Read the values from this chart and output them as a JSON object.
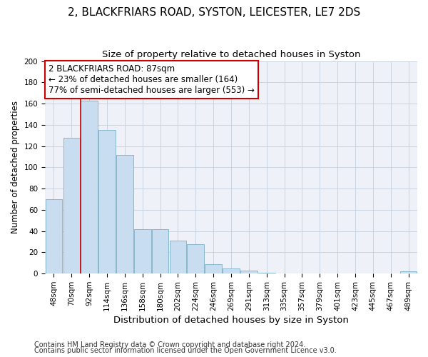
{
  "title1": "2, BLACKFRIARS ROAD, SYSTON, LEICESTER, LE7 2DS",
  "title2": "Size of property relative to detached houses in Syston",
  "xlabel": "Distribution of detached houses by size in Syston",
  "ylabel": "Number of detached properties",
  "bar_values": [
    70,
    128,
    163,
    135,
    112,
    42,
    42,
    31,
    28,
    9,
    5,
    3,
    1,
    0,
    0,
    0,
    0,
    0,
    0,
    0,
    2
  ],
  "bin_labels": [
    "48sqm",
    "70sqm",
    "92sqm",
    "114sqm",
    "136sqm",
    "158sqm",
    "180sqm",
    "202sqm",
    "224sqm",
    "246sqm",
    "269sqm",
    "291sqm",
    "313sqm",
    "335sqm",
    "357sqm",
    "379sqm",
    "401sqm",
    "423sqm",
    "445sqm",
    "467sqm",
    "489sqm"
  ],
  "bar_color": "#c8ddef",
  "bar_edge_color": "#7aafc8",
  "grid_color": "#c8d4e0",
  "vline_color": "#cc0000",
  "annotation_text": "2 BLACKFRIARS ROAD: 87sqm\n← 23% of detached houses are smaller (164)\n77% of semi-detached houses are larger (553) →",
  "annotation_box_color": "#ffffff",
  "annotation_box_edge": "#cc0000",
  "footer1": "Contains HM Land Registry data © Crown copyright and database right 2024.",
  "footer2": "Contains public sector information licensed under the Open Government Licence v3.0.",
  "ylim": [
    0,
    200
  ],
  "yticks": [
    0,
    20,
    40,
    60,
    80,
    100,
    120,
    140,
    160,
    180,
    200
  ],
  "title1_fontsize": 11,
  "title2_fontsize": 9.5,
  "xlabel_fontsize": 9.5,
  "ylabel_fontsize": 8.5,
  "tick_fontsize": 7.5,
  "footer_fontsize": 7,
  "annotation_fontsize": 8.5,
  "plot_bg": "#eef2f8"
}
